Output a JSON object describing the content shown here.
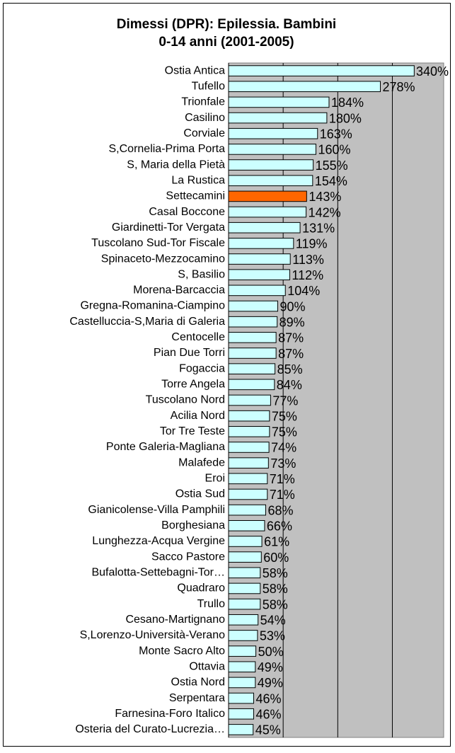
{
  "chart_data": {
    "type": "barh",
    "title": [
      "Dimessi (DPR): Epilessia. Bambini",
      "0-14 anni  (2001-2005)"
    ],
    "categories": [
      "Ostia Antica",
      "Tufello",
      "Trionfale",
      "Casilino",
      "Corviale",
      "S,Cornelia-Prima Porta",
      "S, Maria della Pietà",
      "La Rustica",
      "Settecamini",
      "Casal Boccone",
      "Giardinetti-Tor Vergata",
      "Tuscolano Sud-Tor Fiscale",
      "Spinaceto-Mezzocamino",
      "S, Basilio",
      "Morena-Barcaccia",
      "Gregna-Romanina-Ciampino",
      "Castelluccia-S,Maria di Galeria",
      "Centocelle",
      "Pian Due Torri",
      "Fogaccia",
      "Torre Angela",
      "Tuscolano Nord",
      "Acilia Nord",
      "Tor Tre Teste",
      "Ponte Galeria-Magliana",
      "Malafede",
      "Eroi",
      "Ostia Sud",
      "Gianicolense-Villa Pamphili",
      "Borghesiana",
      "Lunghezza-Acqua Vergine",
      "Sacco Pastore",
      "Bufalotta-Settebagni-Tor…",
      "Quadraro",
      "Trullo",
      "Cesano-Martignano",
      "S,Lorenzo-Università-Verano",
      "Monte Sacro Alto",
      "Ottavia",
      "Ostia Nord",
      "Serpentara",
      "Farnesina-Foro Italico",
      "Osteria del Curato-Lucrezia…"
    ],
    "values": [
      340,
      278,
      184,
      180,
      163,
      160,
      155,
      154,
      143,
      142,
      131,
      119,
      113,
      112,
      104,
      90,
      89,
      87,
      87,
      85,
      84,
      77,
      75,
      75,
      74,
      73,
      71,
      71,
      68,
      66,
      61,
      60,
      58,
      58,
      58,
      54,
      53,
      50,
      49,
      49,
      46,
      46,
      45
    ],
    "value_labels": [
      "340%",
      "278%",
      "184%",
      "180%",
      "163%",
      "160%",
      "155%",
      "154%",
      "143%",
      "142%",
      "131%",
      "119%",
      "113%",
      "112%",
      "104%",
      "90%",
      "89%",
      "87%",
      "87%",
      "85%",
      "84%",
      "77%",
      "75%",
      "75%",
      "74%",
      "73%",
      "71%",
      "71%",
      "68%",
      "66%",
      "61%",
      "60%",
      "58%",
      "58%",
      "58%",
      "54%",
      "53%",
      "50%",
      "49%",
      "49%",
      "46%",
      "46%",
      "45%"
    ],
    "colors": [
      "#ccffff",
      "#ccffff",
      "#ccffff",
      "#ccffff",
      "#ccffff",
      "#ccffff",
      "#ccffff",
      "#ccffff",
      "#ff6600",
      "#ccffff",
      "#ccffff",
      "#ccffff",
      "#ccffff",
      "#ccffff",
      "#ccffff",
      "#ccffff",
      "#ccffff",
      "#ccffff",
      "#ccffff",
      "#ccffff",
      "#ccffff",
      "#ccffff",
      "#ccffff",
      "#ccffff",
      "#ccffff",
      "#ccffff",
      "#ccffff",
      "#ccffff",
      "#ccffff",
      "#ccffff",
      "#ccffff",
      "#ccffff",
      "#ccffff",
      "#ccffff",
      "#ccffff",
      "#ccffff",
      "#ccffff",
      "#ccffff",
      "#ccffff",
      "#ccffff",
      "#ccffff",
      "#ccffff",
      "#ccffff"
    ],
    "xlim": [
      0,
      394
    ],
    "xticks": [
      0,
      100,
      200,
      300
    ],
    "grid": true,
    "plot_background": "#c0c0c0"
  }
}
